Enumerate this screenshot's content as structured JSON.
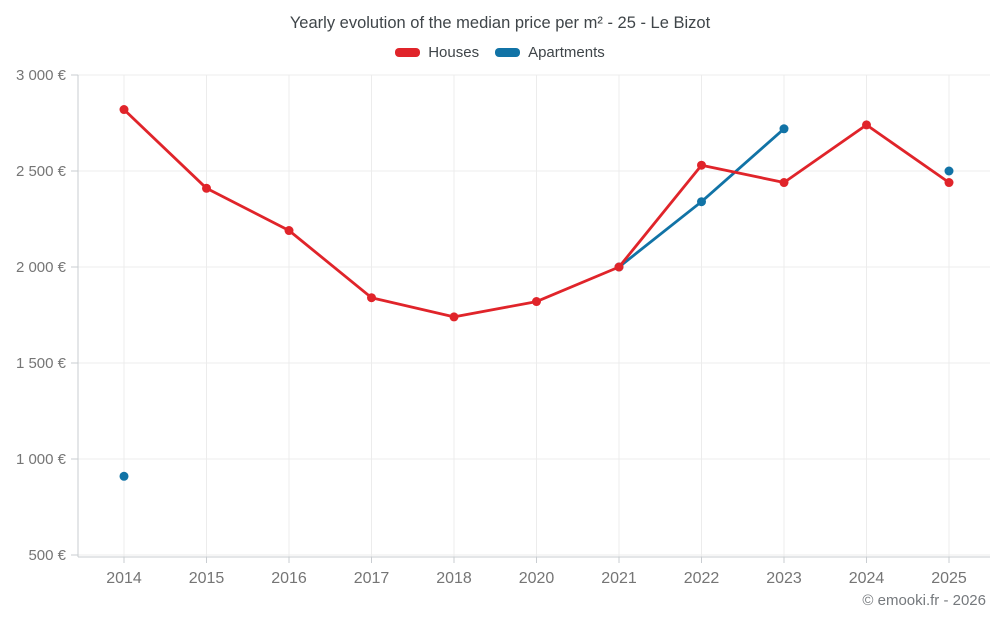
{
  "title": "Yearly evolution of the median price per m² - 25 - Le Bizot",
  "legend": [
    {
      "label": "Houses",
      "color": "#e0242a"
    },
    {
      "label": "Apartments",
      "color": "#1173a6"
    }
  ],
  "footer": "© emooki.fr - 2026",
  "chart_data": {
    "type": "line",
    "title": "Yearly evolution of the median price per m² - 25 - Le Bizot",
    "categories": [
      "2014",
      "2015",
      "2016",
      "2017",
      "2018",
      "2020",
      "2021",
      "2022",
      "2023",
      "2024",
      "2025"
    ],
    "series": [
      {
        "name": "Houses",
        "color": "#e0242a",
        "values": [
          2820,
          2410,
          2190,
          1840,
          1740,
          1820,
          2000,
          2530,
          2440,
          2740,
          2440
        ]
      },
      {
        "name": "Apartments",
        "color": "#1173a6",
        "values": [
          910,
          null,
          null,
          null,
          null,
          null,
          2000,
          2340,
          2720,
          null,
          2500
        ]
      }
    ],
    "yticks": [
      500,
      1000,
      1500,
      2000,
      2500,
      3000
    ],
    "ytick_labels": [
      "500 €",
      "1 000 €",
      "1 500 €",
      "2 000 €",
      "2 500 €",
      "3 000 €"
    ],
    "ylim": [
      500,
      3000
    ],
    "grid": true,
    "legend_position": "top",
    "xlabel": "",
    "ylabel": "",
    "colors": {
      "grid": "#ececec",
      "axis": "#c9cdd1",
      "tick_label": "#757575",
      "background": "#ffffff"
    }
  }
}
